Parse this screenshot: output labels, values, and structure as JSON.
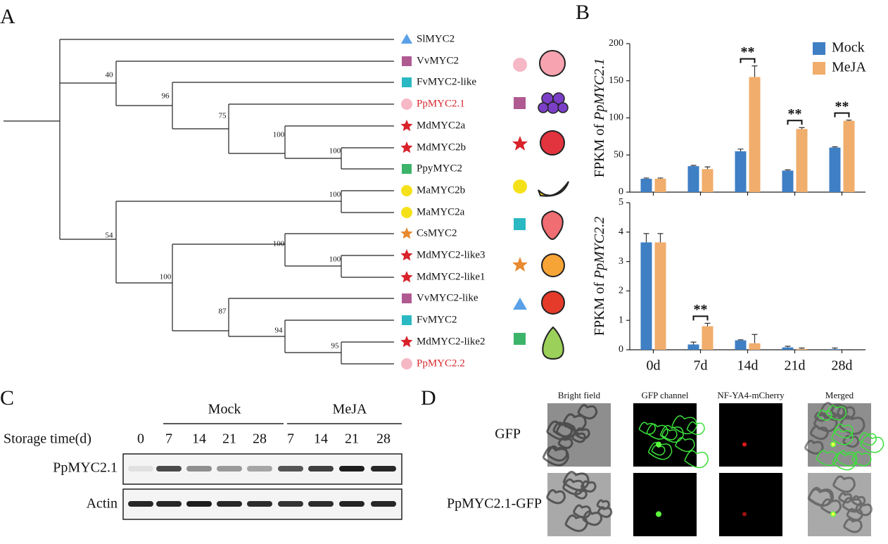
{
  "panel_labels": [
    "A",
    "B",
    "C",
    "D"
  ],
  "tree": {
    "leaves": [
      {
        "label": "SlMYC2",
        "marker": "triangle",
        "marker_color": "#5aa0e8",
        "label_color": "#111"
      },
      {
        "label": "VvMYC2",
        "marker": "square",
        "marker_color": "#b05a92",
        "label_color": "#111"
      },
      {
        "label": "FvMYC2-like",
        "marker": "square",
        "marker_color": "#2ab9c2",
        "label_color": "#111"
      },
      {
        "label": "PpMYC2.1",
        "marker": "circle",
        "marker_color": "#f5b8c4",
        "label_color": "#d6252b"
      },
      {
        "label": "MdMYC2a",
        "marker": "star",
        "marker_color": "#d9222a",
        "label_color": "#111"
      },
      {
        "label": "MdMYC2b",
        "marker": "star",
        "marker_color": "#d9222a",
        "label_color": "#111"
      },
      {
        "label": "PpyMYC2",
        "marker": "square",
        "marker_color": "#3cb46a",
        "label_color": "#111"
      },
      {
        "label": "MaMYC2b",
        "marker": "circle",
        "marker_color": "#f5e11a",
        "label_color": "#111"
      },
      {
        "label": "MaMYC2a",
        "marker": "circle",
        "marker_color": "#f5e11a",
        "label_color": "#111"
      },
      {
        "label": "CsMYC2",
        "marker": "star",
        "marker_color": "#e8892e",
        "label_color": "#111"
      },
      {
        "label": "MdMYC2-like3",
        "marker": "star",
        "marker_color": "#d9222a",
        "label_color": "#111"
      },
      {
        "label": "MdMYC2-like1",
        "marker": "star",
        "marker_color": "#d9222a",
        "label_color": "#111"
      },
      {
        "label": "VvMYC2-like",
        "marker": "square",
        "marker_color": "#b05a92",
        "label_color": "#111"
      },
      {
        "label": "FvMYC2",
        "marker": "square",
        "marker_color": "#2ab9c2",
        "label_color": "#111"
      },
      {
        "label": "MdMYC2-like2",
        "marker": "star",
        "marker_color": "#d9222a",
        "label_color": "#111"
      },
      {
        "label": "PpMYC2.2",
        "marker": "circle",
        "marker_color": "#f5b8c4",
        "label_color": "#d6252b"
      }
    ],
    "bootstraps": [
      40,
      96,
      75,
      100,
      100,
      100,
      54,
      100,
      100,
      100,
      87,
      94,
      95
    ]
  },
  "chart_data": [
    {
      "type": "bar",
      "ylabel": {
        "text": "FPKM of",
        "gene": "PpMYC2.1"
      },
      "categories": [
        "0d",
        "7d",
        "14d",
        "21d",
        "28d"
      ],
      "show_categories": false,
      "series": [
        {
          "name": "Mock",
          "color": "#3f7fc4",
          "values": [
            18,
            35,
            55,
            29,
            60
          ],
          "errors": [
            1,
            1,
            3,
            1,
            1
          ]
        },
        {
          "name": "MeJA",
          "color": "#f0ad6b",
          "values": [
            18,
            31,
            155,
            85,
            96
          ],
          "errors": [
            1,
            3,
            15,
            2,
            1
          ]
        }
      ],
      "significance": [
        null,
        null,
        "**",
        "**",
        "**"
      ],
      "ylim": [
        0,
        200
      ],
      "yticks": [
        0,
        50,
        100,
        150,
        200
      ],
      "legend": "top-right"
    },
    {
      "type": "bar",
      "ylabel": {
        "text": "FPKM of",
        "gene": "PpMYC2.2"
      },
      "categories": [
        "0d",
        "7d",
        "14d",
        "21d",
        "28d"
      ],
      "show_categories": true,
      "series": [
        {
          "name": "Mock",
          "color": "#3f7fc4",
          "values": [
            3.65,
            0.18,
            0.32,
            0.08,
            0.02
          ],
          "errors": [
            0.3,
            0.08,
            0.02,
            0.04,
            0.04
          ]
        },
        {
          "name": "MeJA",
          "color": "#f0ad6b",
          "values": [
            3.65,
            0.8,
            0.22,
            0.03,
            0
          ],
          "errors": [
            0.3,
            0.1,
            0.3,
            0.03,
            0
          ]
        }
      ],
      "significance": [
        null,
        "**",
        null,
        null,
        null
      ],
      "ylim": [
        0,
        5
      ],
      "yticks": [
        0,
        1,
        2,
        3,
        4,
        5
      ],
      "legend": "none"
    }
  ],
  "blot": {
    "groups": [
      "Mock",
      "MeJA"
    ],
    "time_label": "Storage time(d)",
    "lanes": [
      "0",
      "7",
      "14",
      "21",
      "28",
      "7",
      "14",
      "21",
      "28"
    ],
    "rows": [
      "PpMYC2.1",
      "Actin"
    ]
  },
  "microscopy": {
    "columns": [
      "Bright field",
      "GFP channel",
      "NF-YA4-mCherry",
      "Merged"
    ],
    "rows": [
      "GFP",
      "PpMYC2.1-GFP"
    ]
  }
}
